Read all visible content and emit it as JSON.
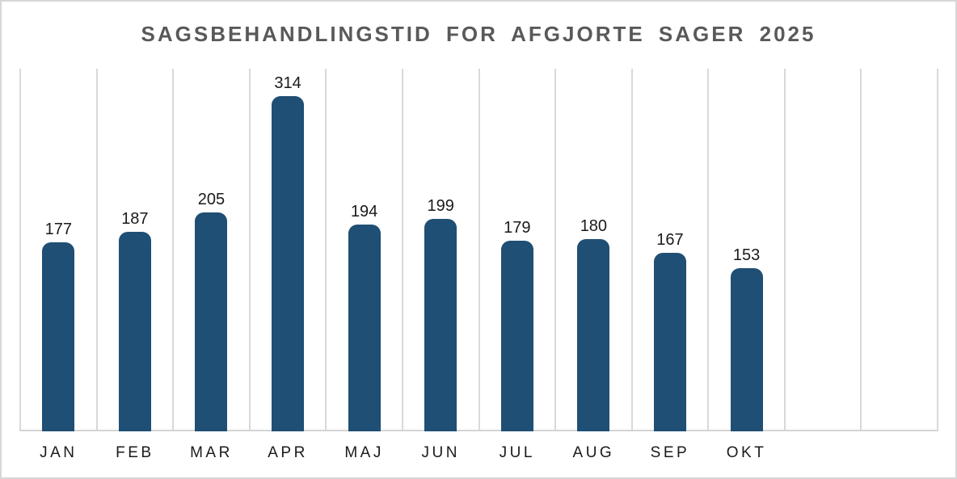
{
  "chart_data": {
    "type": "bar",
    "title": "SAGSBEHANDLINGSTID FOR AFGJORTE SAGER 2025",
    "categories": [
      "JAN",
      "FEB",
      "MAR",
      "APR",
      "MAJ",
      "JUN",
      "JUL",
      "AUG",
      "SEP",
      "OKT"
    ],
    "values": [
      177,
      187,
      205,
      314,
      194,
      199,
      179,
      180,
      167,
      153
    ],
    "xlabel": "",
    "ylabel": "",
    "ylim": [
      0,
      340
    ],
    "grid": "vertical-gridlines-only",
    "legend": "none",
    "data_labels": "above-bars",
    "columns_total": 12
  },
  "colors": {
    "bar": "#1F4F74",
    "gridline": "#D9D9D9",
    "axis_line": "#D4D4D4",
    "title_text": "#595959",
    "label_text": "#1A1A1A",
    "frame_border": "#D7D7D7",
    "background": "#FFFFFF"
  }
}
